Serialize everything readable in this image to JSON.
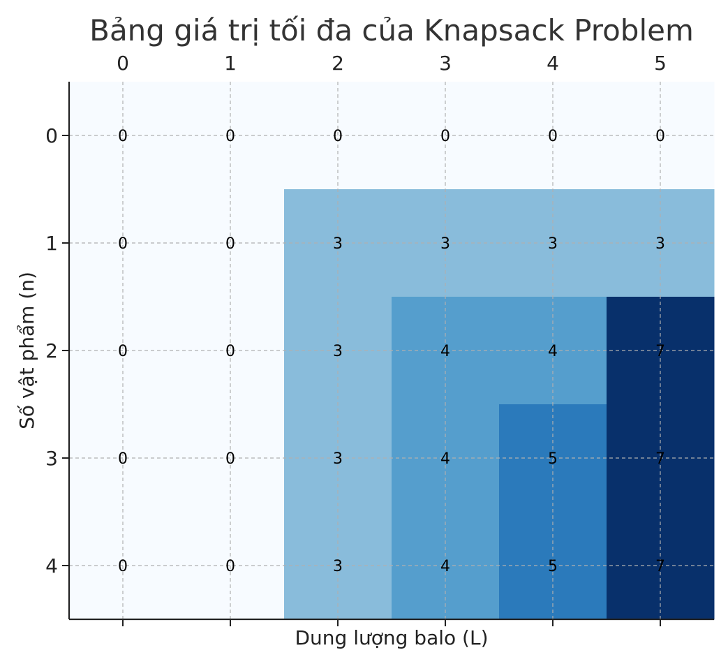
{
  "chart_data": {
    "type": "heatmap",
    "title": "Bảng giá trị tối đa của Knapsack Problem",
    "xlabel": "Dung lượng balo (L)",
    "ylabel": "Số vật phẩm (n)",
    "x_ticks": [
      "0",
      "1",
      "2",
      "3",
      "4",
      "5"
    ],
    "y_ticks": [
      "0",
      "1",
      "2",
      "3",
      "4"
    ],
    "x_axis_position": "top",
    "grid": true,
    "colormap": "Blues",
    "value_range": [
      0,
      7
    ],
    "values": [
      [
        0,
        0,
        0,
        0,
        0,
        0
      ],
      [
        0,
        0,
        3,
        3,
        3,
        3
      ],
      [
        0,
        0,
        3,
        4,
        4,
        7
      ],
      [
        0,
        0,
        3,
        4,
        5,
        7
      ],
      [
        0,
        0,
        3,
        4,
        5,
        7
      ]
    ],
    "colors": {
      "0": "#f7fbff",
      "3": "#89bcdb",
      "4": "#559ecd",
      "5": "#2b7abb",
      "7": "#08306b"
    }
  }
}
